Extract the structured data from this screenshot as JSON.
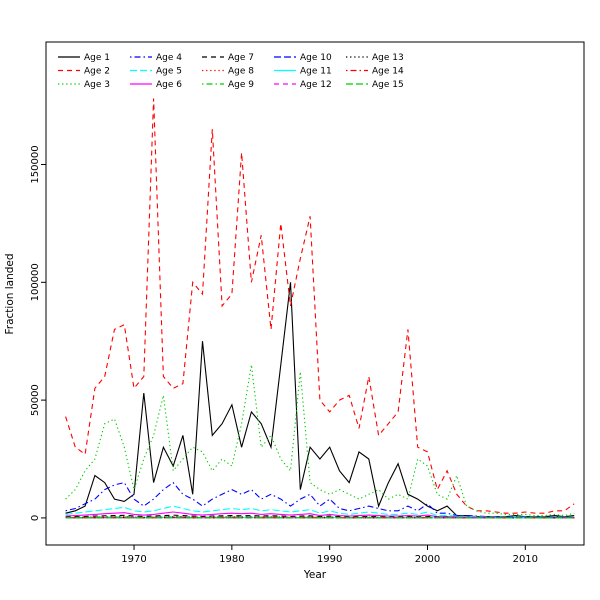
{
  "figure": {
    "background": "#ffffff"
  },
  "chart_data": {
    "type": "line",
    "title": "",
    "xlabel": "Year",
    "ylabel": "Fraction landed",
    "grid": false,
    "legend_position": "top-left-inside",
    "legend_columns": 5,
    "legend_rows": 3,
    "x_ticks": [
      1970,
      1980,
      1990,
      2000,
      2010
    ],
    "y_ticks": [
      0,
      50000,
      100000,
      150000
    ],
    "xlim": [
      1961,
      2016
    ],
    "ylim": [
      -11500,
      202000
    ],
    "x": [
      1963,
      1964,
      1965,
      1966,
      1967,
      1968,
      1969,
      1970,
      1971,
      1972,
      1973,
      1974,
      1975,
      1976,
      1977,
      1978,
      1979,
      1980,
      1981,
      1982,
      1983,
      1984,
      1985,
      1986,
      1987,
      1988,
      1989,
      1990,
      1991,
      1992,
      1993,
      1994,
      1995,
      1996,
      1997,
      1998,
      1999,
      2000,
      2001,
      2002,
      2003,
      2004,
      2005,
      2006,
      2007,
      2008,
      2009,
      2010,
      2011,
      2012,
      2013,
      2014,
      2015
    ],
    "series": [
      {
        "name": "Age 1",
        "color": "#000000",
        "dash": "solid",
        "values": [
          2000,
          3000,
          5000,
          18000,
          15000,
          8000,
          7000,
          10000,
          53000,
          15000,
          30000,
          22000,
          35000,
          10000,
          75000,
          35000,
          40000,
          48000,
          30000,
          45000,
          40000,
          30000,
          65000,
          100000,
          12000,
          30000,
          25000,
          30000,
          20000,
          15000,
          28000,
          25000,
          5000,
          15000,
          23000,
          10000,
          8000,
          5000,
          3000,
          5000,
          1000,
          1000,
          500,
          500,
          500,
          500,
          1000,
          500,
          500,
          500,
          1000,
          500,
          1000
        ]
      },
      {
        "name": "Age 2",
        "color": "#FF0000",
        "dash": "dashed",
        "values": [
          43000,
          30000,
          27000,
          55000,
          60000,
          80000,
          82000,
          55000,
          60000,
          178000,
          60000,
          55000,
          57000,
          100000,
          95000,
          165000,
          90000,
          95000,
          155000,
          100000,
          120000,
          80000,
          125000,
          90000,
          110000,
          128000,
          50000,
          45000,
          50000,
          52000,
          38000,
          60000,
          35000,
          40000,
          45000,
          80000,
          30000,
          28000,
          12000,
          20000,
          10000,
          5000,
          3000,
          3000,
          2500,
          2000,
          2000,
          2500,
          2000,
          2000,
          3000,
          3000,
          6000
        ]
      },
      {
        "name": "Age 3",
        "color": "#00CD00",
        "dash": "dotted",
        "values": [
          8000,
          12000,
          20000,
          25000,
          40000,
          42000,
          30000,
          12000,
          25000,
          35000,
          52000,
          20000,
          25000,
          30000,
          28000,
          20000,
          25000,
          22000,
          40000,
          65000,
          30000,
          35000,
          25000,
          20000,
          62000,
          15000,
          12000,
          10000,
          12000,
          10000,
          8000,
          10000,
          12000,
          8000,
          10000,
          8000,
          25000,
          22000,
          10000,
          8000,
          18000,
          5000,
          3000,
          2000,
          2000,
          1500,
          1500,
          1500,
          1000,
          1000,
          1500,
          1000,
          2000
        ]
      },
      {
        "name": "Age 4",
        "color": "#0000FF",
        "dash": "dotdash",
        "values": [
          3000,
          4000,
          6000,
          8000,
          12000,
          14000,
          15000,
          8000,
          5000,
          8000,
          12000,
          15000,
          10000,
          8000,
          5000,
          8000,
          10000,
          12000,
          10000,
          12000,
          8000,
          10000,
          8000,
          5000,
          8000,
          10000,
          5000,
          8000,
          4000,
          3000,
          4000,
          5000,
          4000,
          3000,
          3000,
          5000,
          3000,
          6000,
          2000,
          2000,
          1000,
          1000,
          800,
          600,
          500,
          500,
          500,
          500,
          400,
          400,
          500,
          400,
          600
        ]
      },
      {
        "name": "Age 5",
        "color": "#00FFFF",
        "dash": "longdash",
        "values": [
          1500,
          2000,
          2500,
          3000,
          3500,
          4000,
          4500,
          3000,
          2500,
          3000,
          4000,
          5000,
          4000,
          3000,
          2500,
          3000,
          3500,
          4000,
          3500,
          4000,
          3000,
          3500,
          3000,
          2500,
          3000,
          3500,
          2000,
          3000,
          2000,
          1500,
          2000,
          2500,
          2000,
          1500,
          1500,
          2000,
          1500,
          2500,
          1000,
          1000,
          800,
          600,
          500,
          400,
          400,
          300,
          300,
          300,
          300,
          300,
          400,
          300,
          400
        ]
      },
      {
        "name": "Age 6",
        "color": "#FF00FF",
        "dash": "solid",
        "values": [
          800,
          1000,
          1200,
          1500,
          1800,
          2000,
          2200,
          1500,
          1200,
          1500,
          2000,
          2500,
          2000,
          1500,
          1200,
          1500,
          1800,
          2000,
          1800,
          2000,
          1500,
          1800,
          1500,
          1200,
          1500,
          1800,
          1000,
          1500,
          1000,
          800,
          1000,
          1200,
          1000,
          800,
          800,
          1000,
          800,
          1200,
          500,
          500,
          400,
          300,
          250,
          200,
          200,
          150,
          150,
          150,
          150,
          150,
          200,
          150,
          200
        ]
      },
      {
        "name": "Age 7",
        "color": "#000000",
        "dash": "dashed",
        "values": [
          400,
          500,
          600,
          800,
          900,
          1000,
          1100,
          800,
          600,
          800,
          1000,
          1200,
          1000,
          800,
          600,
          800,
          900,
          1000,
          900,
          1000,
          800,
          900,
          800,
          600,
          800,
          900,
          500,
          800,
          500,
          400,
          500,
          600,
          500,
          400,
          400,
          500,
          400,
          600,
          300,
          300,
          200,
          150,
          120,
          100,
          100,
          80,
          80,
          80,
          80,
          80,
          100,
          80,
          100
        ]
      },
      {
        "name": "Age 8",
        "color": "#FF0000",
        "dash": "dotted",
        "values": [
          200,
          250,
          300,
          400,
          450,
          500,
          550,
          400,
          300,
          400,
          500,
          600,
          500,
          400,
          300,
          400,
          450,
          500,
          450,
          500,
          400,
          450,
          400,
          300,
          400,
          450,
          250,
          400,
          250,
          200,
          250,
          300,
          250,
          200,
          200,
          250,
          200,
          300,
          150,
          150,
          100,
          80,
          60,
          50,
          50,
          40,
          40,
          40,
          40,
          40,
          50,
          40,
          50
        ]
      },
      {
        "name": "Age 9",
        "color": "#00CD00",
        "dash": "dotdash",
        "values": [
          150,
          180,
          220,
          280,
          320,
          350,
          380,
          280,
          220,
          280,
          350,
          420,
          350,
          280,
          220,
          280,
          320,
          350,
          320,
          350,
          280,
          320,
          280,
          220,
          280,
          320,
          180,
          280,
          180,
          150,
          180,
          220,
          180,
          150,
          150,
          180,
          150,
          220,
          100,
          100,
          80,
          60,
          50,
          40,
          40,
          30,
          30,
          30,
          30,
          30,
          40,
          30,
          40
        ]
      },
      {
        "name": "Age 10",
        "color": "#0000FF",
        "dash": "longdash",
        "values": [
          100,
          120,
          150,
          190,
          220,
          240,
          260,
          190,
          150,
          190,
          240,
          290,
          240,
          190,
          150,
          190,
          220,
          240,
          220,
          240,
          190,
          220,
          190,
          150,
          190,
          220,
          120,
          190,
          120,
          100,
          120,
          150,
          120,
          100,
          100,
          120,
          100,
          150,
          70,
          70,
          50,
          40,
          35,
          30,
          30,
          25,
          25,
          25,
          25,
          25,
          30,
          25,
          30
        ]
      },
      {
        "name": "Age 11",
        "color": "#00FFFF",
        "dash": "solid",
        "values": [
          70,
          85,
          100,
          130,
          150,
          165,
          180,
          130,
          100,
          130,
          165,
          200,
          165,
          130,
          100,
          130,
          150,
          165,
          150,
          165,
          130,
          150,
          130,
          100,
          130,
          150,
          85,
          130,
          85,
          70,
          85,
          100,
          85,
          70,
          70,
          85,
          70,
          100,
          50,
          50,
          35,
          30,
          25,
          20,
          20,
          18,
          18,
          18,
          18,
          18,
          20,
          18,
          20
        ]
      },
      {
        "name": "Age 12",
        "color": "#FF00FF",
        "dash": "dashed",
        "values": [
          50,
          60,
          70,
          90,
          105,
          115,
          125,
          90,
          70,
          90,
          115,
          140,
          115,
          90,
          70,
          90,
          105,
          115,
          105,
          115,
          90,
          105,
          90,
          70,
          90,
          105,
          60,
          90,
          60,
          50,
          60,
          70,
          60,
          50,
          50,
          60,
          50,
          70,
          35,
          35,
          25,
          20,
          18,
          15,
          15,
          12,
          12,
          12,
          12,
          12,
          15,
          12,
          15
        ]
      },
      {
        "name": "Age 13",
        "color": "#000000",
        "dash": "dotted",
        "values": [
          35,
          42,
          50,
          63,
          74,
          80,
          88,
          63,
          50,
          63,
          80,
          98,
          80,
          63,
          50,
          63,
          74,
          80,
          74,
          80,
          63,
          74,
          63,
          50,
          63,
          74,
          42,
          63,
          42,
          35,
          42,
          50,
          42,
          35,
          35,
          42,
          35,
          50,
          25,
          25,
          18,
          15,
          12,
          10,
          10,
          9,
          9,
          9,
          9,
          9,
          10,
          9,
          10
        ]
      },
      {
        "name": "Age 14",
        "color": "#FF0000",
        "dash": "dotdash",
        "values": [
          25,
          30,
          35,
          44,
          52,
          56,
          62,
          44,
          35,
          44,
          56,
          69,
          56,
          44,
          35,
          44,
          52,
          56,
          52,
          56,
          44,
          52,
          44,
          35,
          44,
          52,
          30,
          44,
          30,
          25,
          30,
          35,
          30,
          25,
          25,
          30,
          25,
          35,
          18,
          18,
          12,
          10,
          9,
          8,
          8,
          6,
          6,
          6,
          6,
          6,
          8,
          6,
          8
        ]
      },
      {
        "name": "Age 15",
        "color": "#00CD00",
        "dash": "longdash",
        "values": [
          18,
          21,
          25,
          31,
          36,
          39,
          43,
          31,
          25,
          31,
          39,
          48,
          39,
          31,
          25,
          31,
          36,
          39,
          36,
          39,
          31,
          36,
          31,
          25,
          31,
          36,
          21,
          31,
          21,
          18,
          21,
          25,
          21,
          18,
          18,
          21,
          18,
          25,
          12,
          12,
          9,
          8,
          6,
          5,
          5,
          4,
          4,
          4,
          4,
          4,
          5,
          4,
          5
        ]
      }
    ]
  }
}
